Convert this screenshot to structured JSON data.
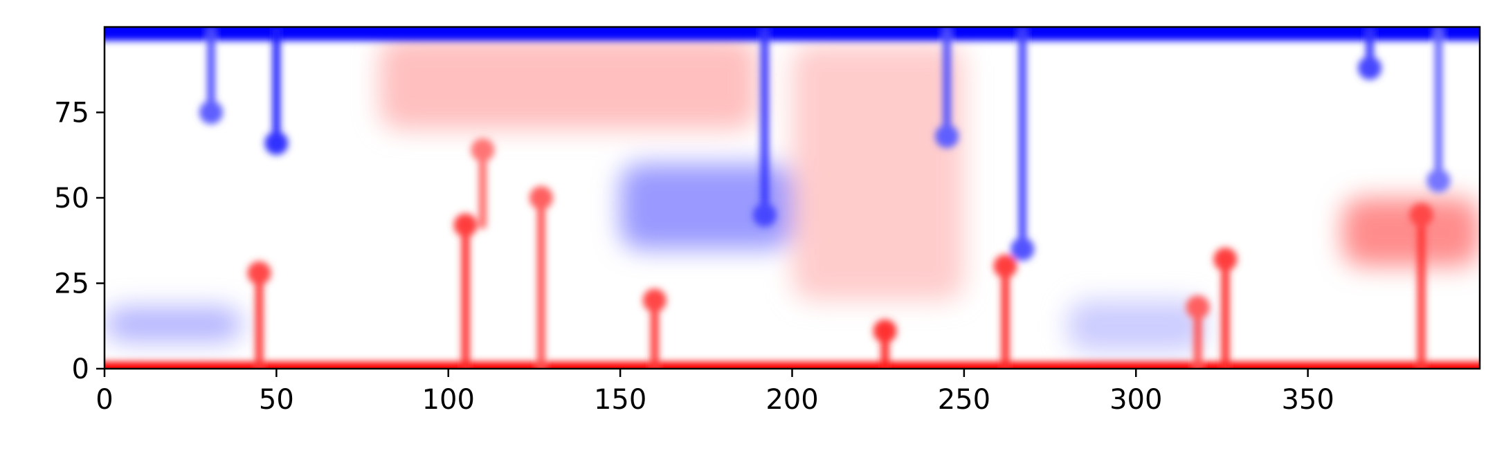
{
  "chart_data": {
    "type": "heatmap",
    "title": "",
    "xlabel": "",
    "ylabel": "",
    "xlim": [
      0,
      400
    ],
    "ylim": [
      0,
      100
    ],
    "x_ticks": [
      0,
      50,
      100,
      150,
      200,
      250,
      300,
      350
    ],
    "y_ticks": [
      0,
      25,
      50,
      75
    ],
    "colormap": "bwr",
    "colors": {
      "low": "#0000ff",
      "mid": "#ffffff",
      "high": "#ff0000"
    },
    "field_features": {
      "hot_boundary": {
        "y": [
          0,
          2
        ],
        "level": 1.0
      },
      "cold_boundary": {
        "y": [
          96,
          99
        ],
        "level": -1.0
      },
      "hot_plumes": [
        {
          "x": 45,
          "y": [
            0,
            28
          ],
          "level": 0.8
        },
        {
          "x": 105,
          "y": [
            0,
            42
          ],
          "level": 0.85
        },
        {
          "x": 110,
          "y": [
            42,
            64
          ],
          "level": 0.6
        },
        {
          "x": 127,
          "y": [
            0,
            50
          ],
          "level": 0.7
        },
        {
          "x": 160,
          "y": [
            0,
            20
          ],
          "level": 0.8
        },
        {
          "x": 227,
          "y": [
            0,
            11
          ],
          "level": 0.9
        },
        {
          "x": 262,
          "y": [
            0,
            30
          ],
          "level": 0.85
        },
        {
          "x": 318,
          "y": [
            0,
            18
          ],
          "level": 0.7
        },
        {
          "x": 326,
          "y": [
            0,
            32
          ],
          "level": 0.85
        },
        {
          "x": 383,
          "y": [
            0,
            45
          ],
          "level": 0.8
        }
      ],
      "cold_plumes": [
        {
          "x": 31,
          "y": [
            75,
            99
          ],
          "level": -0.7
        },
        {
          "x": 50,
          "y": [
            66,
            99
          ],
          "level": -0.9
        },
        {
          "x": 192,
          "y": [
            45,
            99
          ],
          "level": -0.8
        },
        {
          "x": 245,
          "y": [
            68,
            99
          ],
          "level": -0.7
        },
        {
          "x": 267,
          "y": [
            35,
            99
          ],
          "level": -0.75
        },
        {
          "x": 368,
          "y": [
            88,
            99
          ],
          "level": -0.8
        },
        {
          "x": 388,
          "y": [
            55,
            99
          ],
          "level": -0.6
        }
      ],
      "warm_regions": [
        {
          "x": [
            80,
            190
          ],
          "y": [
            70,
            97
          ],
          "level": 0.25
        },
        {
          "x": [
            200,
            250
          ],
          "y": [
            20,
            95
          ],
          "level": 0.2
        },
        {
          "x": [
            360,
            400
          ],
          "y": [
            30,
            50
          ],
          "level": 0.45
        }
      ],
      "cool_regions": [
        {
          "x": [
            150,
            200
          ],
          "y": [
            35,
            60
          ],
          "level": -0.4
        },
        {
          "x": [
            0,
            40
          ],
          "y": [
            8,
            18
          ],
          "level": -0.3
        },
        {
          "x": [
            280,
            320
          ],
          "y": [
            5,
            20
          ],
          "level": -0.2
        }
      ]
    }
  }
}
